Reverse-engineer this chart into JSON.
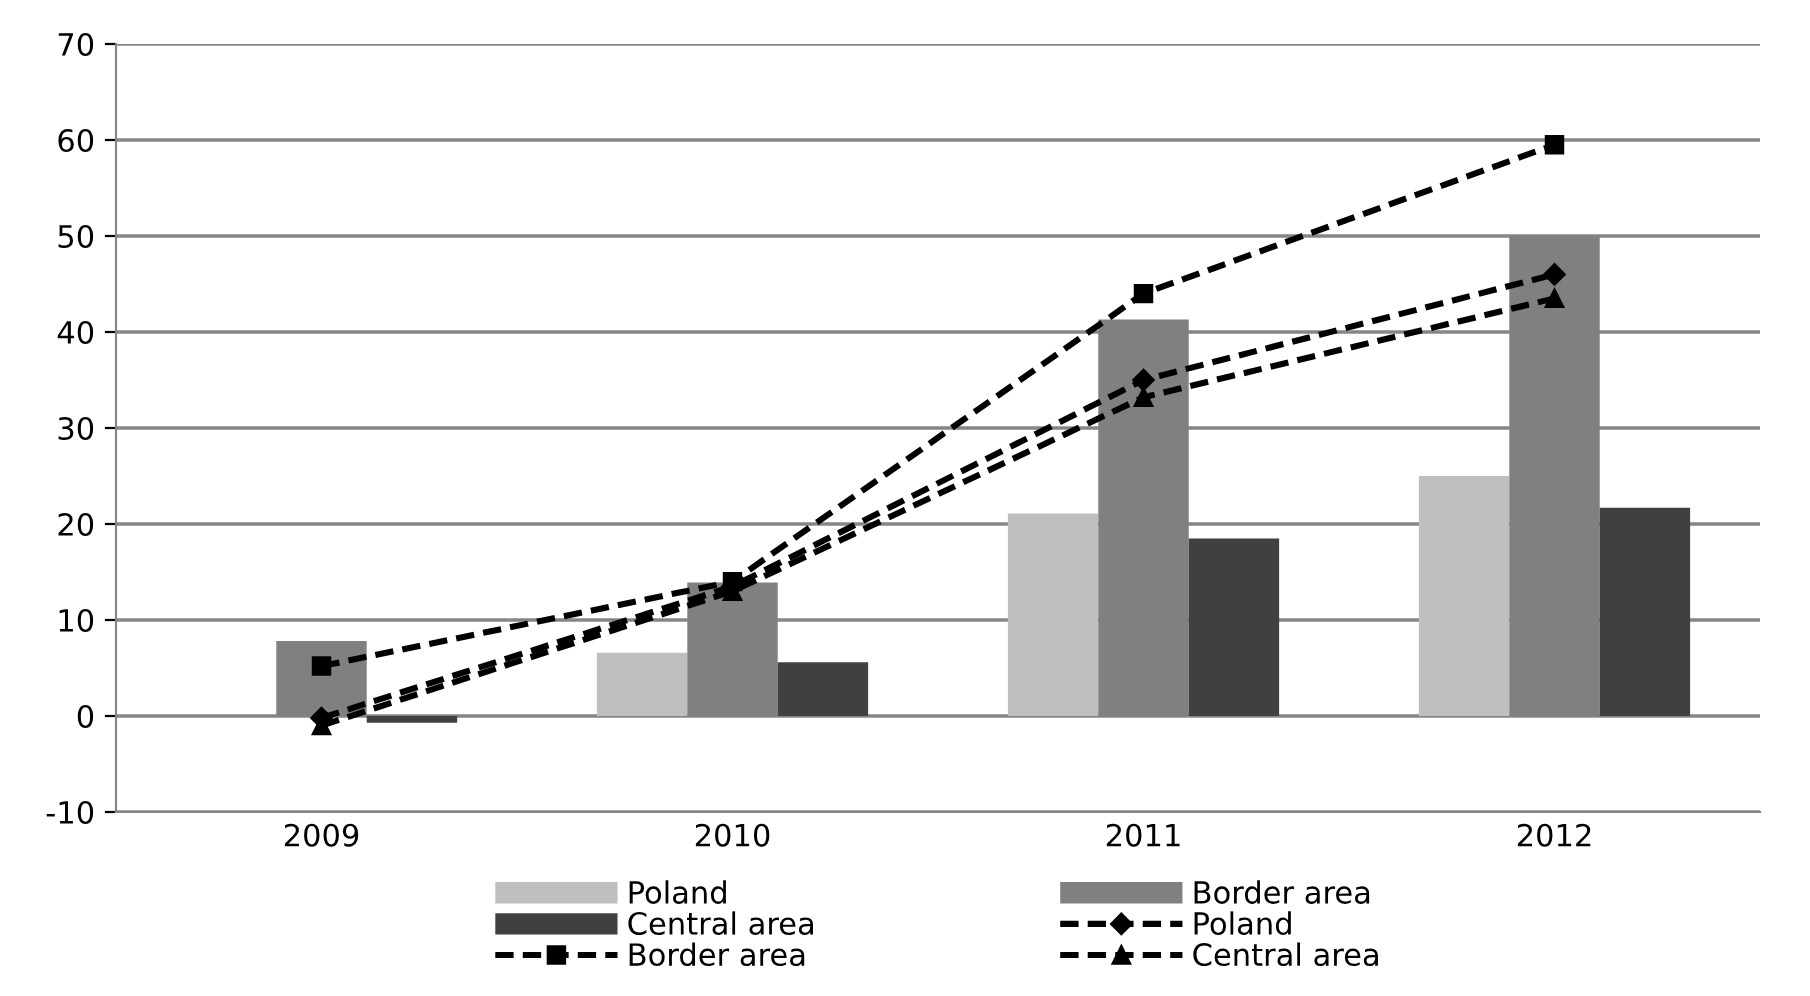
{
  "chart_data": {
    "type": "bar",
    "categories": [
      "2009",
      "2010",
      "2011",
      "2012"
    ],
    "ylim": [
      -10,
      70
    ],
    "yticks": [
      -10,
      0,
      10,
      20,
      30,
      40,
      50,
      60,
      70
    ],
    "grid": "y",
    "legend": "bottom",
    "series": [
      {
        "name": "Poland",
        "color": "#bfbfbf",
        "values": [
          0,
          6.6,
          21.1,
          25
        ]
      },
      {
        "name": "Border area",
        "color": "#808080",
        "values": [
          7.8,
          13.9,
          41.3,
          50
        ]
      },
      {
        "name": "Central area",
        "color": "#404040",
        "values": [
          -0.7,
          5.6,
          18.5,
          21.7
        ]
      },
      {
        "name": "Poland",
        "type": "line",
        "color": "#000000",
        "marker": "diamond",
        "line_style": "dashed",
        "values": [
          -0.2,
          13.5,
          35,
          46
        ]
      },
      {
        "name": "Border area",
        "type": "line",
        "color": "#000000",
        "marker": "square",
        "line_style": "dashed",
        "values": [
          5.2,
          14,
          44,
          59.5
        ]
      },
      {
        "name": "Central area",
        "type": "line",
        "color": "#000000",
        "marker": "triangle",
        "line_style": "dashed",
        "values": [
          -1,
          13,
          33.2,
          43.5
        ]
      }
    ]
  }
}
